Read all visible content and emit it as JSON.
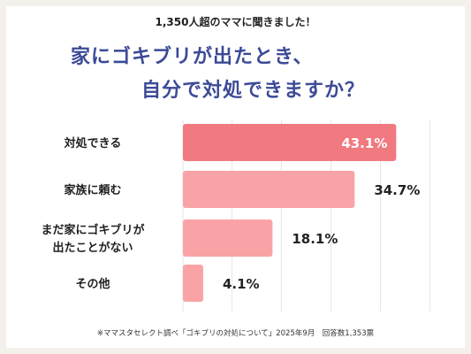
{
  "header": {
    "note": "1,350人超のママに聞きました！",
    "title_line1": "家にゴキブリが出たとき、",
    "title_line2": "自分で対処できますか？"
  },
  "footer": {
    "source": "※ママスタセレクト調べ「ゴキブリの対処について」2025年9月　回答数1,353票"
  },
  "colors": {
    "highlight_bar": "#f07a80",
    "bar": "#f9a3a6",
    "highlight_label": "#ffffff",
    "label": "#222222",
    "grid": "#e6e6e6",
    "title": "#3c4a96"
  },
  "chart_data": {
    "type": "bar",
    "orientation": "horizontal",
    "categories": [
      "対処できる",
      "家族に頼む",
      "まだ家にゴキブリが\n出たことがない",
      "その他"
    ],
    "values": [
      43.1,
      34.7,
      18.1,
      4.1
    ],
    "value_labels": [
      "43.1%",
      "34.7%",
      "18.1%",
      "4.1%"
    ],
    "highlight_index": 0,
    "xlim": [
      0,
      50
    ],
    "grid": true
  }
}
